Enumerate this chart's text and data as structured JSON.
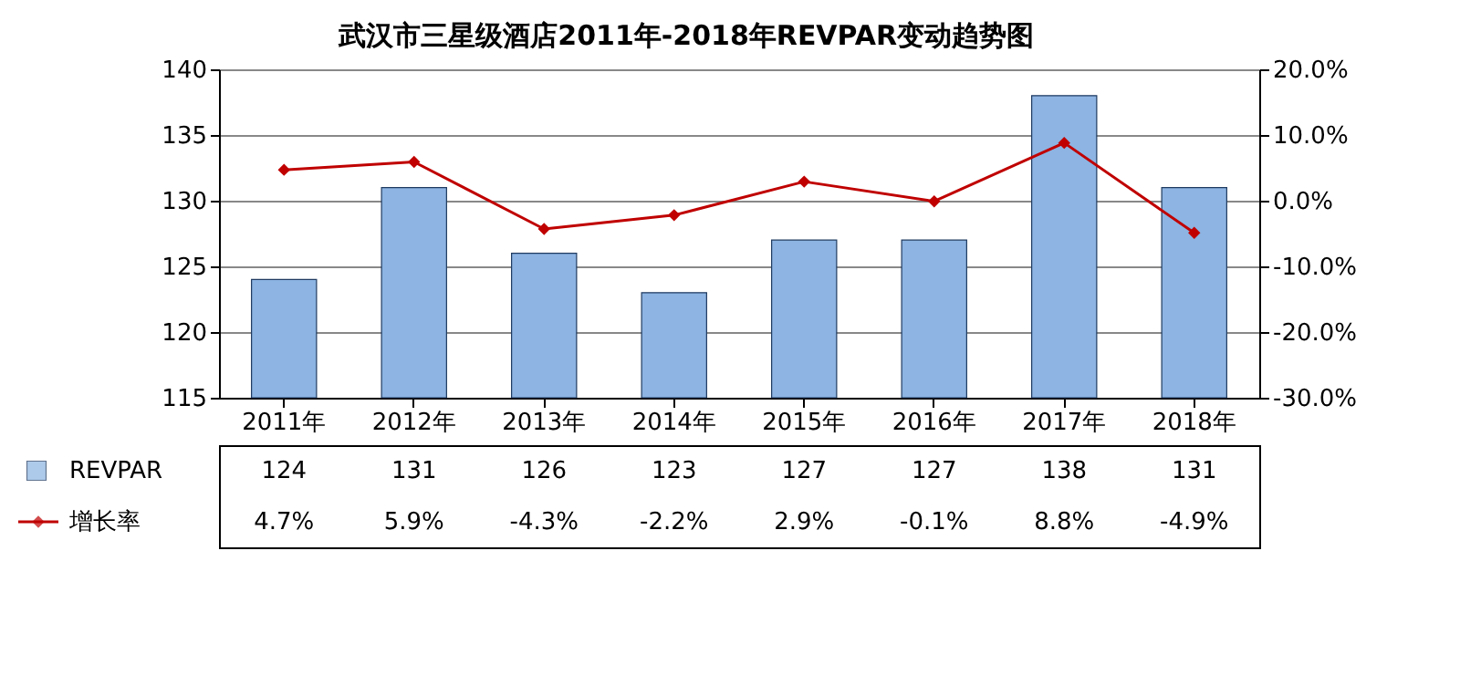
{
  "chart_data": {
    "type": "bar",
    "title": "武汉市三星级酒店2011年-2018年REVPAR变动趋势图",
    "categories": [
      "2011年",
      "2012年",
      "2013年",
      "2014年",
      "2015年",
      "2016年",
      "2017年",
      "2018年"
    ],
    "series": [
      {
        "name": "REVPAR",
        "color": "#8db4e2",
        "values": [
          124,
          131,
          126,
          123,
          127,
          127,
          138,
          131
        ],
        "value_labels": [
          "124",
          "131",
          "126",
          "123",
          "127",
          "127",
          "138",
          "131"
        ]
      },
      {
        "name": "增长率",
        "type": "line",
        "axis": "y2",
        "color": "#c00000",
        "marker": "diamond",
        "values": [
          4.7,
          5.9,
          -4.3,
          -2.2,
          2.9,
          -0.1,
          8.8,
          -4.9
        ],
        "value_labels": [
          "4.7%",
          "5.9%",
          "-4.3%",
          "-2.2%",
          "2.9%",
          "-0.1%",
          "8.8%",
          "-4.9%"
        ]
      }
    ],
    "ylim": [
      115,
      140
    ],
    "yticks": [
      115,
      120,
      125,
      130,
      135,
      140
    ],
    "y2lim": [
      -30,
      20
    ],
    "y2ticks": [
      {
        "value": -30,
        "label": "-30.0%"
      },
      {
        "value": -20,
        "label": "-20.0%"
      },
      {
        "value": -10,
        "label": "-10.0%"
      },
      {
        "value": 0,
        "label": "0.0%"
      },
      {
        "value": 10,
        "label": "10.0%"
      },
      {
        "value": 20,
        "label": "20.0%"
      }
    ],
    "grid": "y",
    "legend": "bottom"
  }
}
